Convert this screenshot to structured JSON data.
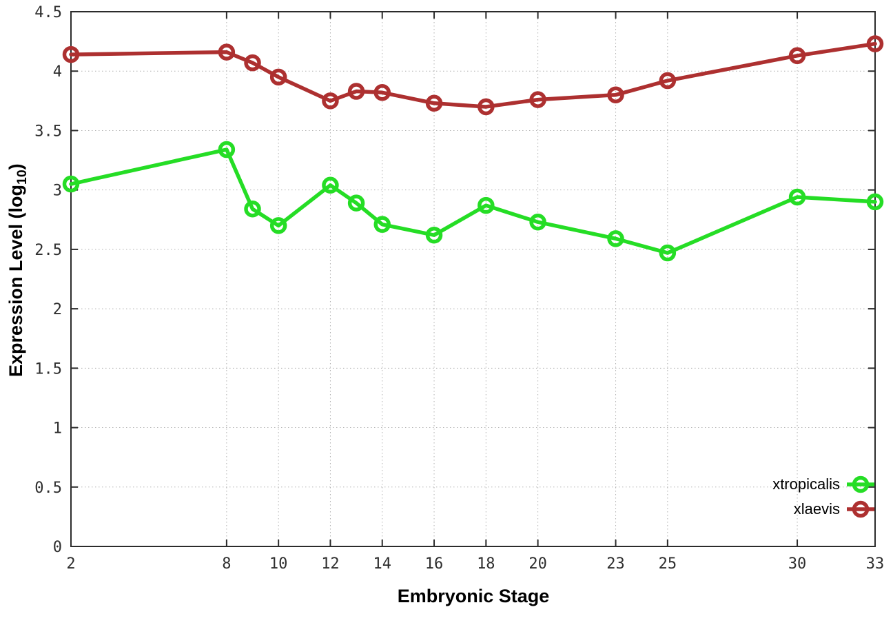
{
  "chart_data": {
    "type": "line",
    "title": "",
    "xlabel": "Embryonic Stage",
    "ylabel_prefix": "Expression Level (log",
    "ylabel_sub": "10",
    "ylabel_suffix": ")",
    "xlim": [
      2,
      33
    ],
    "ylim": [
      0,
      4.5
    ],
    "grid": "dotted-major-both-axes",
    "legend_position": "inside-bottom-right",
    "marker": "open-circle",
    "x": [
      2,
      8,
      9,
      10,
      12,
      13,
      14,
      16,
      18,
      20,
      23,
      25,
      30,
      33
    ],
    "xticks": [
      {
        "v": 2,
        "label": "2"
      },
      {
        "v": 8,
        "label": "8"
      },
      {
        "v": 10,
        "label": "10"
      },
      {
        "v": 12,
        "label": "12"
      },
      {
        "v": 14,
        "label": "14"
      },
      {
        "v": 16,
        "label": "16"
      },
      {
        "v": 18,
        "label": "18"
      },
      {
        "v": 20,
        "label": "20"
      },
      {
        "v": 23,
        "label": "23"
      },
      {
        "v": 25,
        "label": "25"
      },
      {
        "v": 30,
        "label": "30"
      },
      {
        "v": 33,
        "label": "33"
      }
    ],
    "yticks": [
      {
        "v": 0,
        "label": "0"
      },
      {
        "v": 0.5,
        "label": "0.5"
      },
      {
        "v": 1,
        "label": "1"
      },
      {
        "v": 1.5,
        "label": "1.5"
      },
      {
        "v": 2,
        "label": "2"
      },
      {
        "v": 2.5,
        "label": "2.5"
      },
      {
        "v": 3,
        "label": "3"
      },
      {
        "v": 3.5,
        "label": "3.5"
      },
      {
        "v": 4,
        "label": "4"
      },
      {
        "v": 4.5,
        "label": "4.5"
      }
    ],
    "series": [
      {
        "name": "xtropicalis",
        "color": "#25dd25",
        "values": [
          3.05,
          3.34,
          2.84,
          2.7,
          3.04,
          2.89,
          2.71,
          2.62,
          2.87,
          2.73,
          2.59,
          2.47,
          2.94,
          2.9
        ]
      },
      {
        "name": "xlaevis",
        "color": "#ad3030",
        "values": [
          4.14,
          4.16,
          4.07,
          3.95,
          3.75,
          3.83,
          3.82,
          3.73,
          3.7,
          3.76,
          3.8,
          3.92,
          4.13,
          4.23
        ]
      }
    ]
  },
  "style": {
    "axis_color": "#2b2b2b",
    "grid_color": "#b0b0b0",
    "tick_label_color": "#2e2e2e",
    "background": "#ffffff"
  }
}
